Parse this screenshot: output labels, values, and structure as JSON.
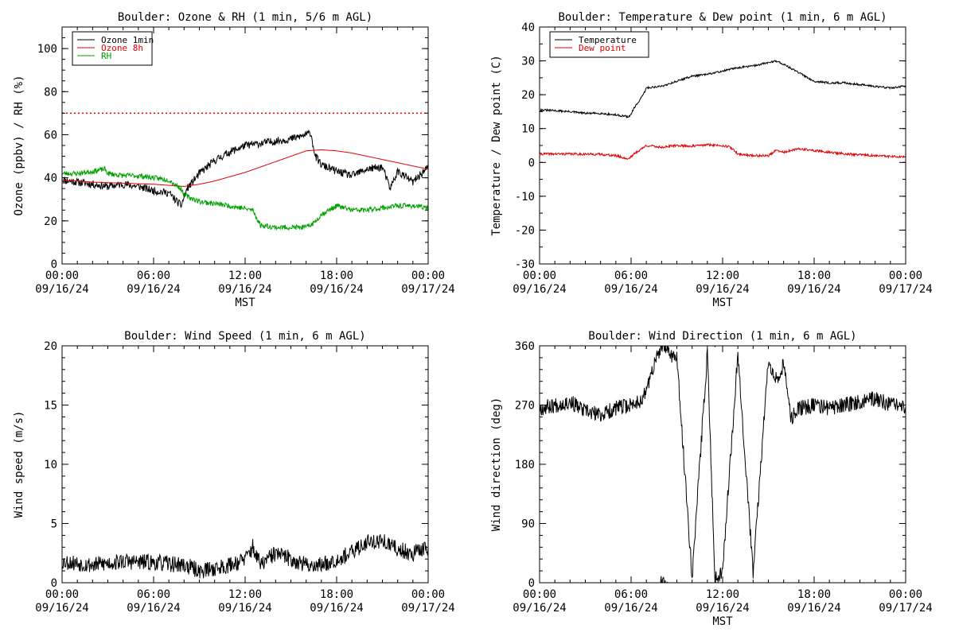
{
  "chart_data": [
    {
      "type": "line",
      "title": "Boulder: Ozone & RH (1 min, 5/6 m AGL)",
      "xlabel": "MST",
      "ylabel": "Ozone (ppbv) / RH (%)",
      "x_ticks": [
        {
          "x": 0,
          "time": "00:00",
          "date": "09/16/24"
        },
        {
          "x": 6,
          "time": "06:00",
          "date": "09/16/24"
        },
        {
          "x": 12,
          "time": "12:00",
          "date": "09/16/24"
        },
        {
          "x": 18,
          "time": "18:00",
          "date": "09/16/24"
        },
        {
          "x": 24,
          "time": "00:00",
          "date": "09/17/24"
        }
      ],
      "xlim": [
        0,
        24
      ],
      "ylim": [
        0,
        110
      ],
      "y_ticks": [
        0,
        20,
        40,
        60,
        80,
        100
      ],
      "y_minor": 5,
      "legend": {
        "position": "top-left",
        "entries": [
          {
            "name": "Ozone 1min",
            "color": "#000000"
          },
          {
            "name": "Ozone 8h",
            "color": "#e00000"
          },
          {
            "name": "RH",
            "color": "#00a000"
          }
        ]
      },
      "reference_lines": [
        {
          "y": 70,
          "color": "#e00000",
          "style": "dotted"
        }
      ],
      "series": [
        {
          "name": "Ozone 1min",
          "color": "#000000",
          "noise": 1.8,
          "seed": 11,
          "x": [
            0,
            1,
            2,
            3,
            4,
            5,
            6,
            7,
            7.8,
            8.2,
            9,
            10,
            11,
            12,
            13,
            14,
            15,
            16,
            16.3,
            16.6,
            17,
            18,
            19,
            20,
            21,
            21.5,
            22,
            23,
            24
          ],
          "y": [
            39,
            38,
            37,
            36,
            37,
            36,
            34,
            33,
            27,
            35,
            42,
            48,
            52,
            55,
            56,
            57,
            58,
            60,
            61,
            50,
            46,
            43,
            41,
            44,
            45,
            35,
            43,
            38,
            45
          ]
        },
        {
          "name": "Ozone 8h",
          "color": "#e00000",
          "noise": 0,
          "seed": 0,
          "x": [
            0,
            2,
            4,
            6,
            7,
            8,
            9,
            10,
            11,
            12,
            13,
            14,
            15,
            16,
            17,
            18,
            19,
            20,
            21,
            22,
            23,
            24
          ],
          "y": [
            39,
            38,
            37.5,
            37,
            36.5,
            36,
            37,
            38.5,
            40.5,
            42.5,
            45,
            47.5,
            50,
            52.5,
            53,
            52.5,
            51.5,
            50,
            48.5,
            47,
            45.5,
            44
          ]
        },
        {
          "name": "RH",
          "color": "#00a000",
          "noise": 1.2,
          "seed": 23,
          "x": [
            0,
            1,
            2,
            2.8,
            3,
            4,
            5,
            6,
            7,
            7.8,
            8,
            9,
            10,
            11,
            12.5,
            13,
            14,
            15,
            16,
            16.5,
            17,
            18,
            19,
            20,
            21,
            22,
            23,
            24
          ],
          "y": [
            42,
            42,
            43,
            44,
            42,
            41,
            41,
            40,
            39,
            35,
            32,
            29,
            28,
            27,
            25,
            18,
            17,
            17,
            17,
            19,
            23,
            27,
            25,
            25,
            26,
            27,
            27,
            26
          ]
        }
      ]
    },
    {
      "type": "line",
      "title": "Boulder: Temperature & Dew point (1 min, 6 m AGL)",
      "xlabel": "MST",
      "ylabel": "Temperature / Dew point (C)",
      "x_ticks": [
        {
          "x": 0,
          "time": "00:00",
          "date": "09/16/24"
        },
        {
          "x": 6,
          "time": "06:00",
          "date": "09/16/24"
        },
        {
          "x": 12,
          "time": "12:00",
          "date": "09/16/24"
        },
        {
          "x": 18,
          "time": "18:00",
          "date": "09/16/24"
        },
        {
          "x": 24,
          "time": "00:00",
          "date": "09/17/24"
        }
      ],
      "xlim": [
        0,
        24
      ],
      "ylim": [
        -30,
        40
      ],
      "y_ticks": [
        -30,
        -20,
        -10,
        0,
        10,
        20,
        30,
        40
      ],
      "y_minor": 5,
      "legend": {
        "position": "top-left",
        "entries": [
          {
            "name": "Temperature",
            "color": "#000000"
          },
          {
            "name": "Dew point",
            "color": "#e00000"
          }
        ]
      },
      "reference_lines": [],
      "series": [
        {
          "name": "Temperature",
          "color": "#000000",
          "noise": 0.3,
          "seed": 31,
          "x": [
            0,
            1,
            2,
            3,
            4,
            5,
            5.9,
            6.2,
            6.8,
            7,
            8,
            9,
            10,
            11,
            12,
            13,
            14,
            15,
            15.5,
            16,
            17,
            18,
            19,
            20,
            21,
            22,
            23,
            24
          ],
          "y": [
            15.5,
            15.3,
            15,
            14.5,
            14.5,
            14,
            13.5,
            16,
            20,
            22,
            22.5,
            24,
            25.5,
            26,
            27,
            28,
            28.5,
            29.5,
            30,
            29,
            26.5,
            24,
            23.5,
            23.5,
            23,
            22.5,
            22,
            22.5
          ]
        },
        {
          "name": "Dew point",
          "color": "#e00000",
          "noise": 0.35,
          "seed": 41,
          "x": [
            0,
            2,
            4,
            5,
            5.8,
            6.2,
            7,
            8,
            9,
            10,
            11,
            12,
            12.5,
            13,
            14,
            15,
            15.5,
            16,
            17,
            18,
            20,
            22,
            24
          ],
          "y": [
            2.5,
            2.5,
            2.4,
            2.0,
            1.0,
            2.5,
            5.0,
            4.5,
            5.0,
            4.8,
            5.2,
            5.0,
            4.5,
            2.5,
            2.0,
            2.0,
            3.5,
            3.0,
            4.0,
            3.5,
            2.5,
            2.0,
            1.5
          ]
        }
      ]
    },
    {
      "type": "line",
      "title": "Boulder: Wind Speed (1 min, 6 m AGL)",
      "xlabel": "",
      "ylabel": "Wind speed (m/s)",
      "x_ticks": [
        {
          "x": 0,
          "time": "00:00",
          "date": "09/16/24"
        },
        {
          "x": 6,
          "time": "06:00",
          "date": "09/16/24"
        },
        {
          "x": 12,
          "time": "12:00",
          "date": "09/16/24"
        },
        {
          "x": 18,
          "time": "18:00",
          "date": "09/16/24"
        },
        {
          "x": 24,
          "time": "00:00",
          "date": "09/17/24"
        }
      ],
      "xlim": [
        0,
        24
      ],
      "ylim": [
        0,
        20
      ],
      "y_ticks": [
        0,
        5,
        10,
        15,
        20
      ],
      "y_minor": 1,
      "legend": null,
      "reference_lines": [],
      "series": [
        {
          "name": "",
          "color": "#000000",
          "noise": 0.7,
          "seed": 53,
          "floor": 0,
          "x": [
            0,
            2,
            4,
            6,
            8,
            9,
            10,
            11,
            12,
            12.5,
            13,
            14,
            15,
            16,
            17,
            18,
            19,
            20,
            21,
            22,
            23,
            24
          ],
          "y": [
            1.8,
            1.5,
            1.8,
            1.7,
            1.5,
            1.0,
            1.2,
            1.5,
            2.0,
            3.0,
            1.5,
            2.5,
            2.0,
            1.5,
            1.5,
            2.0,
            2.5,
            3.5,
            3.5,
            2.8,
            2.5,
            3.0
          ]
        }
      ]
    },
    {
      "type": "line",
      "title": "Boulder: Wind Direction (1 min, 6 m AGL)",
      "xlabel": "MST",
      "ylabel": "Wind direction (deg)",
      "x_ticks": [
        {
          "x": 0,
          "time": "00:00",
          "date": "09/16/24"
        },
        {
          "x": 6,
          "time": "06:00",
          "date": "09/16/24"
        },
        {
          "x": 12,
          "time": "12:00",
          "date": "09/16/24"
        },
        {
          "x": 18,
          "time": "18:00",
          "date": "09/16/24"
        },
        {
          "x": 24,
          "time": "00:00",
          "date": "09/17/24"
        }
      ],
      "xlim": [
        0,
        24
      ],
      "ylim": [
        0,
        360
      ],
      "y_ticks": [
        0,
        90,
        180,
        270,
        360
      ],
      "y_minor": 18,
      "legend": null,
      "reference_lines": [],
      "series": [
        {
          "name": "",
          "color": "#000000",
          "noise": 12,
          "seed": 67,
          "wrap360": true,
          "x": [
            0,
            1,
            2,
            3,
            4,
            5,
            6,
            6.8,
            7.5,
            8,
            9,
            10,
            11,
            11.5,
            12,
            13,
            14,
            15,
            15.5,
            16,
            16.5,
            17,
            18,
            19,
            20,
            21,
            22,
            23,
            24
          ],
          "y": [
            265,
            270,
            275,
            260,
            255,
            265,
            270,
            280,
            330,
            360,
            340,
            10,
            350,
            5,
            20,
            350,
            15,
            340,
            310,
            330,
            250,
            265,
            270,
            265,
            270,
            275,
            280,
            270,
            265
          ]
        }
      ]
    }
  ]
}
